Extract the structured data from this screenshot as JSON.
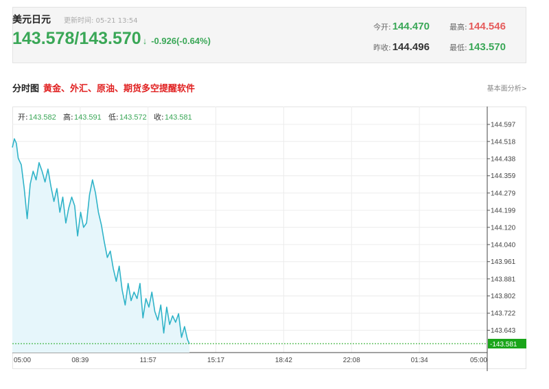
{
  "header": {
    "symbol": "美元日元",
    "update_time": "更新时间: 05-21 13:54",
    "bid": "143.578",
    "separator": "/",
    "ask": "143.570",
    "arrow": "↓",
    "change": "-0.926(-0.64%)",
    "stats": {
      "open_label": "今开:",
      "open": "144.470",
      "high_label": "最高:",
      "high": "144.546",
      "prev_close_label": "昨收:",
      "prev_close": "144.496",
      "low_label": "最低:",
      "low": "143.570"
    }
  },
  "section": {
    "title": "分时图",
    "promo_link": "黄金、外汇、原油、期货多空提醒软件",
    "fundamental_link": "基本面分析>"
  },
  "colors": {
    "up": "#e55b5b",
    "down": "#3aa757",
    "line": "#2fb3c8",
    "area": "#e6f6fb",
    "current_price_tag": "#1aa51a"
  },
  "chart_data": {
    "type": "area",
    "title": "",
    "xlabel": "",
    "ylabel": "",
    "ohlc_legend": [
      {
        "label": "开:",
        "value": "143.582"
      },
      {
        "label": "高:",
        "value": "143.591"
      },
      {
        "label": "低:",
        "value": "143.572"
      },
      {
        "label": "收:",
        "value": "143.581"
      }
    ],
    "x_ticks": [
      "05:00",
      "08:39",
      "11:57",
      "15:17",
      "18:42",
      "22:08",
      "01:34",
      "05:00"
    ],
    "y_ticks": [
      "144.597",
      "144.518",
      "144.438",
      "144.359",
      "144.279",
      "144.199",
      "144.120",
      "144.040",
      "143.961",
      "143.881",
      "143.802",
      "143.722",
      "143.643"
    ],
    "ylim": [
      143.581,
      144.597
    ],
    "current_price": "143.581",
    "grid": true,
    "series": [
      {
        "x_hours": [
          0,
          0.1,
          0.2,
          0.3,
          0.45,
          0.6,
          0.75,
          0.9,
          1.05,
          1.2,
          1.35,
          1.5,
          1.65,
          1.8,
          1.95,
          2.1,
          2.25,
          2.4,
          2.55,
          2.7,
          2.85,
          3.0,
          3.15,
          3.3,
          3.45,
          3.6,
          3.75,
          3.9,
          4.05,
          4.2,
          4.35,
          4.5,
          4.65,
          4.8,
          4.95,
          5.1,
          5.25,
          5.4,
          5.55,
          5.7,
          5.85,
          6.0,
          6.15,
          6.3,
          6.45,
          6.6,
          6.75,
          6.9,
          7.05,
          7.2,
          7.35,
          7.5,
          7.65,
          7.8,
          7.95,
          8.1,
          8.25,
          8.4,
          8.55,
          8.7,
          8.85,
          8.95
        ],
        "values": [
          144.49,
          144.53,
          144.51,
          144.44,
          144.41,
          144.3,
          144.16,
          144.32,
          144.38,
          144.34,
          144.42,
          144.38,
          144.33,
          144.39,
          144.31,
          144.24,
          144.3,
          144.19,
          144.26,
          144.14,
          144.21,
          144.26,
          144.22,
          144.08,
          144.19,
          144.12,
          144.14,
          144.27,
          144.34,
          144.28,
          144.19,
          144.13,
          144.05,
          143.98,
          144.01,
          143.93,
          143.87,
          143.94,
          143.83,
          143.76,
          143.86,
          143.78,
          143.82,
          143.79,
          143.86,
          143.7,
          143.79,
          143.75,
          143.82,
          143.73,
          143.69,
          143.76,
          143.63,
          143.75,
          143.67,
          143.71,
          143.68,
          143.72,
          143.61,
          143.66,
          143.6,
          143.58
        ]
      }
    ]
  }
}
